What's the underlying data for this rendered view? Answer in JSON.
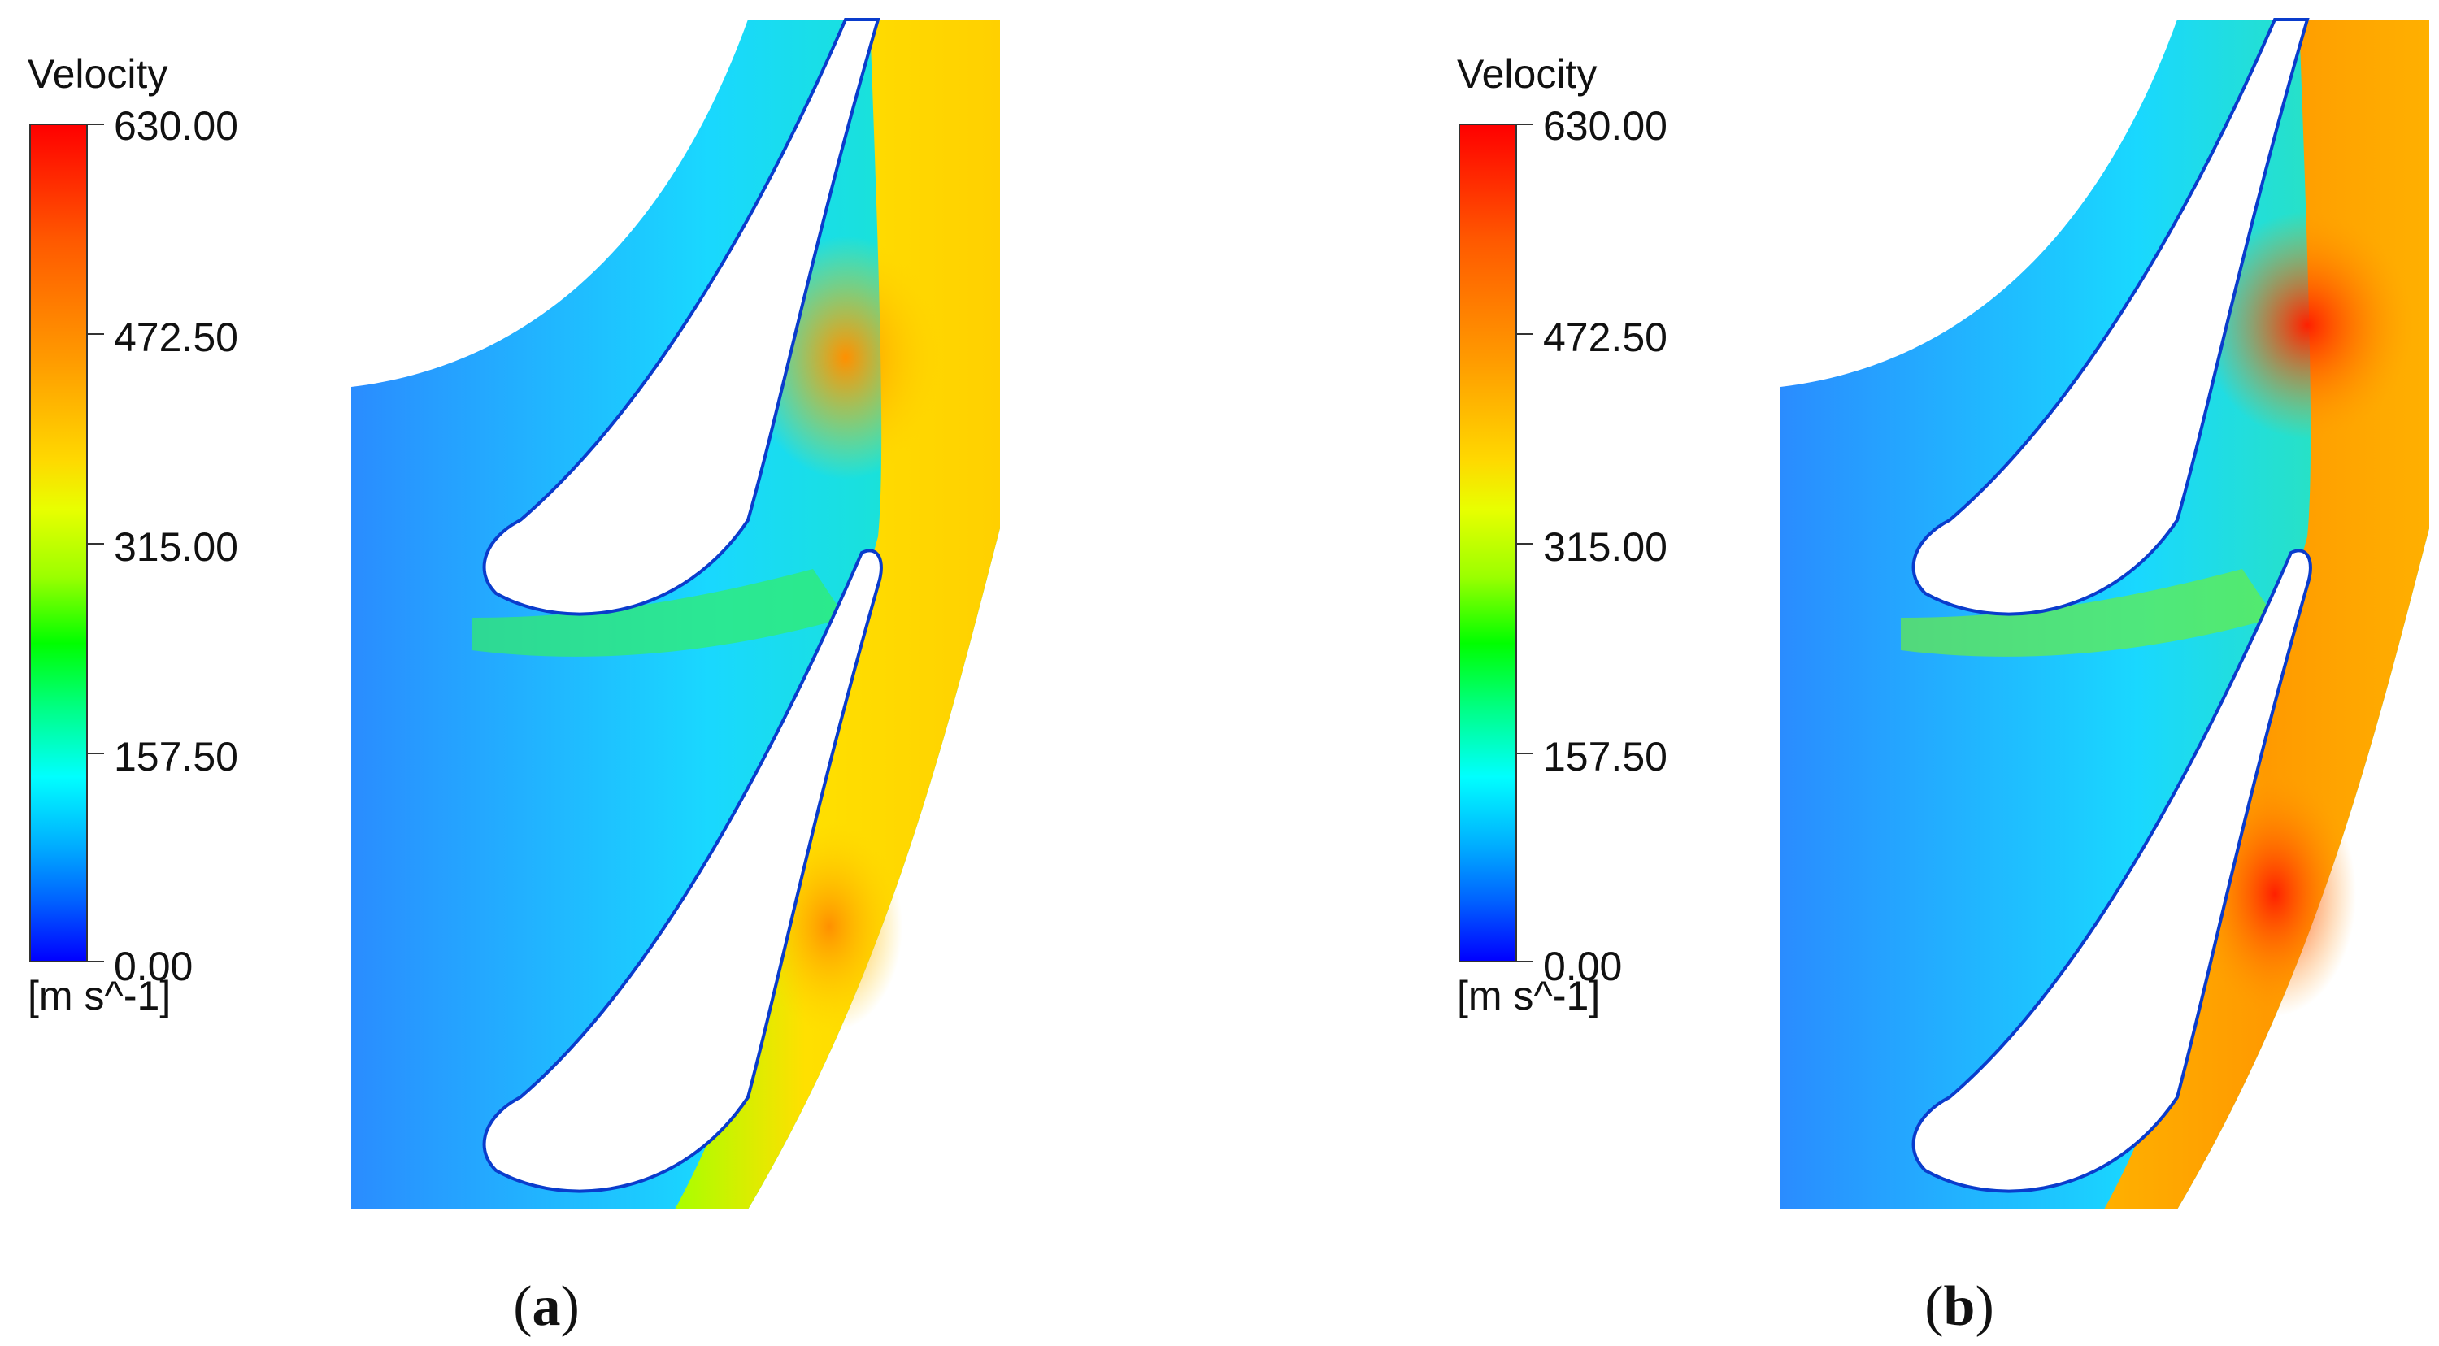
{
  "panels": [
    {
      "id": "a",
      "caption_open": "(",
      "caption_letter": "a",
      "caption_close": ")",
      "legend": {
        "title": "Velocity",
        "unit": "[m s^-1]",
        "ticks": [
          "630.00",
          "472.50",
          "315.00",
          "157.50",
          "0.00"
        ]
      }
    },
    {
      "id": "b",
      "caption_open": "(",
      "caption_letter": "b",
      "caption_close": ")",
      "legend": {
        "title": "Velocity",
        "unit": "[m s^-1]",
        "ticks": [
          "630.00",
          "472.50",
          "315.00",
          "157.50",
          "0.00"
        ]
      }
    }
  ],
  "colors": {
    "max": "#ff0000",
    "high": "#ff9a00",
    "mid_high": "#ffd800",
    "mid": "#00ff00",
    "low_mid": "#00ffff",
    "low": "#0080ff",
    "min": "#0000ff"
  }
}
